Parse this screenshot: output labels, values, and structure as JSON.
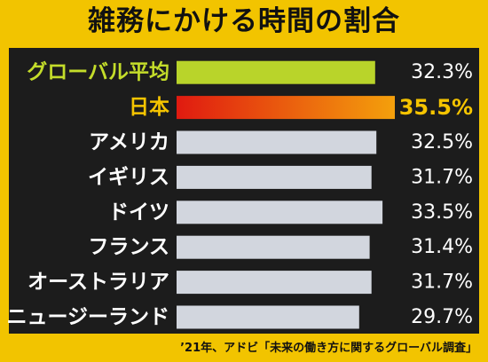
{
  "title": "雑務にかける時間の割合",
  "source": "’21年、アドビ「未来の働き方に関するグローバル調査」",
  "colors": {
    "background": "#f2c400",
    "panel": "#1c1c1c",
    "global_bar": "#b9d42a",
    "global_label": "#c4dd2a",
    "japan_bar_start": "#e01a10",
    "japan_bar_end": "#f4a00c",
    "japan_text": "#f5c400",
    "default_bar": "#d2d6de",
    "default_text": "#ffffff"
  },
  "chart_data": {
    "type": "bar",
    "orientation": "horizontal",
    "categories": [
      "グローバル平均",
      "日本",
      "アメリカ",
      "イギリス",
      "ドイツ",
      "フランス",
      "オーストラリア",
      "ニュージーランド"
    ],
    "values": [
      32.3,
      35.5,
      32.5,
      31.7,
      33.5,
      31.4,
      31.7,
      29.7
    ],
    "value_labels": [
      "32.3%",
      "35.5%",
      "32.5%",
      "31.7%",
      "33.5%",
      "31.4%",
      "31.7%",
      "29.7%"
    ],
    "highlight": {
      "グローバル平均": "global",
      "日本": "japan"
    },
    "unit": "%",
    "xlim": [
      0,
      35.5
    ],
    "grid": false,
    "legend": false
  }
}
